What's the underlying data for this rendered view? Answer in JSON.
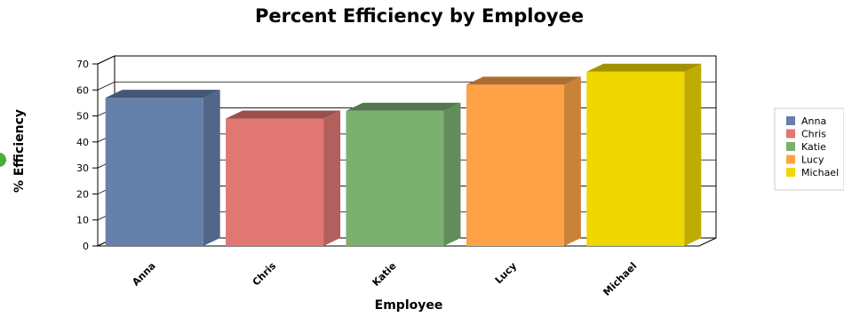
{
  "chart_data": {
    "type": "bar",
    "title": "Percent Efficiency by Employee",
    "xlabel": "Employee",
    "ylabel": "% Efficiency",
    "categories": [
      "Anna",
      "Chris",
      "Katie",
      "Lucy",
      "Michael"
    ],
    "values": [
      57,
      49,
      52,
      62,
      67
    ],
    "ylim": [
      0,
      70
    ],
    "yticks": [
      0,
      10,
      20,
      30,
      40,
      50,
      60,
      70
    ],
    "grid": true,
    "legend_position": "right",
    "three_d": true,
    "colors": [
      "#6580AA",
      "#E07773",
      "#7BB071",
      "#FDA247",
      "#EFD700"
    ]
  }
}
